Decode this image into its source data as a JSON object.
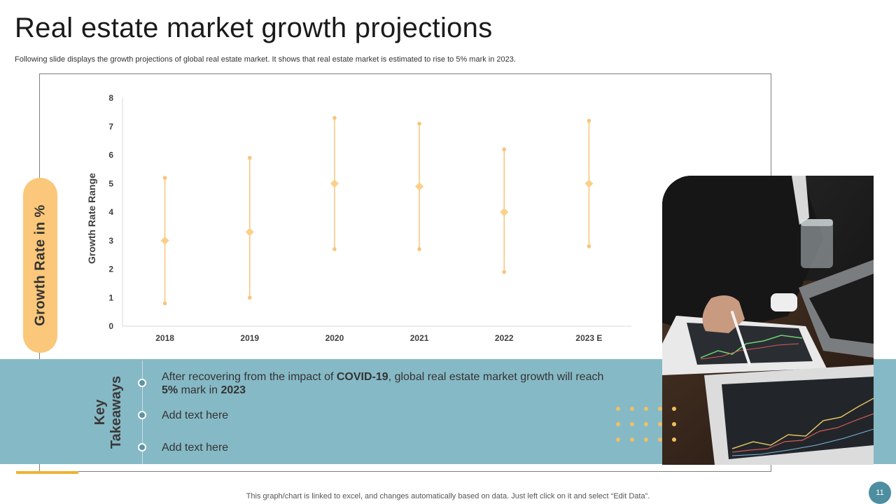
{
  "title": "Real estate market growth projections",
  "subtitle": "Following slide displays the growth projections of global real estate market. It shows that real estate market is estimated to rise to 5% mark in 2023.",
  "side_label": "Growth Rate in %",
  "chart_data": {
    "type": "scatter",
    "subtype": "high-low-mid range",
    "ylabel": "Growth Rate Range",
    "xlabel": "",
    "ylim": [
      0,
      8
    ],
    "yticks": [
      0,
      1,
      2,
      3,
      4,
      5,
      6,
      7,
      8
    ],
    "categories": [
      "2018",
      "2019",
      "2020",
      "2021",
      "2022",
      "2023 E"
    ],
    "high": [
      5.2,
      5.9,
      7.3,
      7.1,
      6.2,
      7.2
    ],
    "low": [
      0.8,
      1.0,
      2.7,
      2.7,
      1.9,
      2.8
    ],
    "mid": [
      3.0,
      3.3,
      5.0,
      4.9,
      4.0,
      5.0
    ],
    "grid": false,
    "color": "#f9c47a",
    "marker_color": "#fbd08a"
  },
  "takeaways": {
    "heading_line1": "Key",
    "heading_line2": "Takeaways",
    "item1": {
      "p1": "After recovering from the impact of ",
      "b1": "COVID-19",
      "p2": ", global real estate market growth will reach ",
      "b2": "5%",
      "p3": " mark in ",
      "b3": "2023"
    },
    "item2": "Add text here",
    "item3": "Add text here"
  },
  "footer_note": "This graph/chart is linked to excel, and changes automatically based on data. Just left click on it and select “Edit Data”.",
  "page_number": "11",
  "colors": {
    "band": "#86b9c6",
    "accent": "#f2b130",
    "pill": "#fbc77a",
    "page_badge": "#4d8ea1"
  }
}
